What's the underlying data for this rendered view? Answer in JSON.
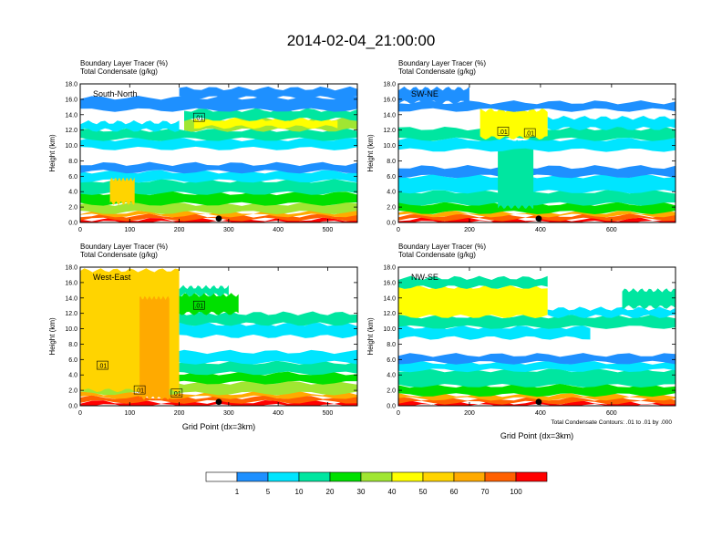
{
  "title": "2014-02-04_21:00:00",
  "colors": {
    "levels": [
      "#ffffff",
      "#1e90ff",
      "#00e5ff",
      "#00e6a0",
      "#00e000",
      "#a0e632",
      "#ffff00",
      "#ffd400",
      "#ffaa00",
      "#ff6000",
      "#ff0000"
    ]
  },
  "chart_data": [
    {
      "type": "contour",
      "panel_label": "South-North",
      "header_line1": "Boundary Layer Tracer   (%)",
      "header_line2": "Total Condensate   (g/kg)",
      "ylabel": "Height (km)",
      "xlabel": "",
      "x_ticks": [
        "0",
        "100",
        "200",
        "300",
        "400",
        "500"
      ],
      "x_tick_values": [
        0,
        100,
        200,
        300,
        400,
        500
      ],
      "xlim": [
        0,
        560
      ],
      "y_ticks": [
        "0.0",
        "2.0",
        "4.0",
        "6.0",
        "8.0",
        "10.0",
        "12.0",
        "14.0",
        "16.0",
        "18.0"
      ],
      "ylim": [
        0,
        18
      ],
      "marker_x": 280,
      "contour_labels": [
        {
          "text": ".01",
          "x": 240,
          "y": 13.6
        }
      ],
      "bands": [
        {
          "x0": 0,
          "x1": 560,
          "y0": 0,
          "y1": 0.4,
          "level": 10
        },
        {
          "x0": 0,
          "x1": 560,
          "y0": 0.4,
          "y1": 0.9,
          "level": 9
        },
        {
          "x0": 0,
          "x1": 560,
          "y0": 0.9,
          "y1": 1.3,
          "level": 8
        },
        {
          "x0": 0,
          "x1": 560,
          "y0": 1.3,
          "y1": 2.4,
          "level": 5
        },
        {
          "x0": 0,
          "x1": 560,
          "y0": 2.4,
          "y1": 3.8,
          "level": 4
        },
        {
          "x0": 0,
          "x1": 560,
          "y0": 3.8,
          "y1": 5.4,
          "level": 3
        },
        {
          "x0": 0,
          "x1": 560,
          "y0": 5.4,
          "y1": 6.6,
          "level": 2
        },
        {
          "x0": 0,
          "x1": 560,
          "y0": 6.6,
          "y1": 7.6,
          "level": 1
        },
        {
          "x0": 60,
          "x1": 110,
          "y0": 2.5,
          "y1": 5.6,
          "level": 7
        },
        {
          "x0": 0,
          "x1": 560,
          "y0": 9.6,
          "y1": 10.8,
          "level": 2
        },
        {
          "x0": 0,
          "x1": 560,
          "y0": 10.8,
          "y1": 12.0,
          "level": 3
        },
        {
          "x0": 210,
          "x1": 560,
          "y0": 12.0,
          "y1": 13.4,
          "level": 5
        },
        {
          "x0": 230,
          "x1": 520,
          "y0": 12.4,
          "y1": 13.4,
          "level": 6
        },
        {
          "x0": 210,
          "x1": 560,
          "y0": 13.4,
          "y1": 14.6,
          "level": 3
        },
        {
          "x0": 0,
          "x1": 200,
          "y0": 12.0,
          "y1": 13.0,
          "level": 2
        },
        {
          "x0": 0,
          "x1": 560,
          "y0": 14.6,
          "y1": 16.2,
          "level": 1
        },
        {
          "x0": 200,
          "x1": 560,
          "y0": 16.2,
          "y1": 17.4,
          "level": 1
        }
      ]
    },
    {
      "type": "contour",
      "panel_label": "SW-NE",
      "header_line1": "Boundary Layer Tracer   (%)",
      "header_line2": "Total Condensate   (g/kg)",
      "ylabel": "Height (km)",
      "xlabel": "",
      "x_ticks": [
        "0",
        "200",
        "400",
        "600"
      ],
      "x_tick_values": [
        0,
        200,
        400,
        600
      ],
      "xlim": [
        0,
        780
      ],
      "y_ticks": [
        "0.0",
        "2.0",
        "4.0",
        "6.0",
        "8.0",
        "10.0",
        "12.0",
        "14.0",
        "16.0",
        "18.0"
      ],
      "ylim": [
        0,
        18
      ],
      "marker_x": 395,
      "contour_labels": [
        {
          "text": ".01",
          "x": 295,
          "y": 11.8
        },
        {
          "text": ".01",
          "x": 370,
          "y": 11.6
        }
      ],
      "bands": [
        {
          "x0": 0,
          "x1": 780,
          "y0": 0,
          "y1": 0.4,
          "level": 10
        },
        {
          "x0": 0,
          "x1": 780,
          "y0": 0.4,
          "y1": 0.9,
          "level": 9
        },
        {
          "x0": 0,
          "x1": 780,
          "y0": 0.9,
          "y1": 1.3,
          "level": 8
        },
        {
          "x0": 0,
          "x1": 780,
          "y0": 1.3,
          "y1": 2.4,
          "level": 4
        },
        {
          "x0": 0,
          "x1": 780,
          "y0": 2.4,
          "y1": 4.0,
          "level": 3
        },
        {
          "x0": 0,
          "x1": 780,
          "y0": 4.0,
          "y1": 6.0,
          "level": 2
        },
        {
          "x0": 0,
          "x1": 780,
          "y0": 6.0,
          "y1": 7.2,
          "level": 1
        },
        {
          "x0": 280,
          "x1": 380,
          "y0": 2.0,
          "y1": 10.5,
          "level": 3
        },
        {
          "x0": 0,
          "x1": 780,
          "y0": 9.4,
          "y1": 10.8,
          "level": 2
        },
        {
          "x0": 0,
          "x1": 780,
          "y0": 10.8,
          "y1": 12.2,
          "level": 3
        },
        {
          "x0": 230,
          "x1": 420,
          "y0": 11.0,
          "y1": 14.6,
          "level": 6
        },
        {
          "x0": 420,
          "x1": 780,
          "y0": 12.2,
          "y1": 13.6,
          "level": 2
        },
        {
          "x0": 0,
          "x1": 780,
          "y0": 14.6,
          "y1": 15.6,
          "level": 1
        },
        {
          "x0": 0,
          "x1": 200,
          "y0": 15.6,
          "y1": 17.4,
          "level": 1
        }
      ]
    },
    {
      "type": "contour",
      "panel_label": "West-East",
      "header_line1": "Boundary Layer Tracer   (%)",
      "header_line2": "Total Condensate   (g/kg)",
      "ylabel": "Height (km)",
      "xlabel": "Grid Point (dx=3km)",
      "x_ticks": [
        "0",
        "100",
        "200",
        "300",
        "400",
        "500"
      ],
      "x_tick_values": [
        0,
        100,
        200,
        300,
        400,
        500
      ],
      "xlim": [
        0,
        560
      ],
      "y_ticks": [
        "0.0",
        "2.0",
        "4.0",
        "6.0",
        "8.0",
        "10.0",
        "12.0",
        "14.0",
        "16.0",
        "18.0"
      ],
      "ylim": [
        0,
        18
      ],
      "marker_x": 280,
      "contour_labels": [
        {
          "text": ".01",
          "x": 45,
          "y": 5.2
        },
        {
          "text": ".01",
          "x": 120,
          "y": 2.0
        },
        {
          "text": ".01",
          "x": 195,
          "y": 1.6
        },
        {
          "text": ".01",
          "x": 240,
          "y": 13.0
        }
      ],
      "bands": [
        {
          "x0": 0,
          "x1": 560,
          "y0": 0,
          "y1": 0.5,
          "level": 10
        },
        {
          "x0": 0,
          "x1": 560,
          "y0": 0.5,
          "y1": 1.1,
          "level": 9
        },
        {
          "x0": 0,
          "x1": 560,
          "y0": 1.1,
          "y1": 1.6,
          "level": 8
        },
        {
          "x0": 0,
          "x1": 560,
          "y0": 1.6,
          "y1": 3.0,
          "level": 5
        },
        {
          "x0": 0,
          "x1": 560,
          "y0": 3.0,
          "y1": 4.2,
          "level": 4
        },
        {
          "x0": 0,
          "x1": 560,
          "y0": 4.2,
          "y1": 5.6,
          "level": 3
        },
        {
          "x0": 0,
          "x1": 560,
          "y0": 5.6,
          "y1": 7.0,
          "level": 2
        },
        {
          "x0": 0,
          "x1": 200,
          "y0": 2.0,
          "y1": 17.6,
          "level": 7
        },
        {
          "x0": 120,
          "x1": 180,
          "y0": 1.0,
          "y1": 14.0,
          "level": 8
        },
        {
          "x0": 200,
          "x1": 560,
          "y0": 9.0,
          "y1": 10.6,
          "level": 2
        },
        {
          "x0": 200,
          "x1": 560,
          "y0": 10.6,
          "y1": 12.0,
          "level": 3
        },
        {
          "x0": 200,
          "x1": 320,
          "y0": 12.0,
          "y1": 14.4,
          "level": 4
        },
        {
          "x0": 200,
          "x1": 300,
          "y0": 14.4,
          "y1": 15.4,
          "level": 3
        }
      ]
    },
    {
      "type": "contour",
      "panel_label": "NW-SE",
      "header_line1": "Boundary Layer Tracer   (%)",
      "header_line2": "Total Condensate   (g/kg)",
      "ylabel": "Height (km)",
      "xlabel": "Grid Point (dx=3km)",
      "x_ticks": [
        "0",
        "200",
        "400",
        "600"
      ],
      "x_tick_values": [
        0,
        200,
        400,
        600
      ],
      "xlim": [
        0,
        780
      ],
      "y_ticks": [
        "0.0",
        "2.0",
        "4.0",
        "6.0",
        "8.0",
        "10.0",
        "12.0",
        "14.0",
        "16.0",
        "18.0"
      ],
      "ylim": [
        0,
        18
      ],
      "marker_x": 395,
      "note": "Total Condensate Contours: .01 to .01 by .000",
      "contour_labels": [],
      "bands": [
        {
          "x0": 0,
          "x1": 780,
          "y0": 0,
          "y1": 0.4,
          "level": 10
        },
        {
          "x0": 0,
          "x1": 780,
          "y0": 0.4,
          "y1": 0.9,
          "level": 9
        },
        {
          "x0": 0,
          "x1": 780,
          "y0": 0.9,
          "y1": 1.4,
          "level": 8
        },
        {
          "x0": 0,
          "x1": 780,
          "y0": 1.4,
          "y1": 2.6,
          "level": 4
        },
        {
          "x0": 0,
          "x1": 780,
          "y0": 2.6,
          "y1": 4.6,
          "level": 3
        },
        {
          "x0": 0,
          "x1": 780,
          "y0": 4.6,
          "y1": 5.6,
          "level": 2
        },
        {
          "x0": 0,
          "x1": 780,
          "y0": 5.6,
          "y1": 6.6,
          "level": 1
        },
        {
          "x0": 0,
          "x1": 540,
          "y0": 8.8,
          "y1": 10.2,
          "level": 2
        },
        {
          "x0": 0,
          "x1": 780,
          "y0": 10.2,
          "y1": 11.6,
          "level": 3
        },
        {
          "x0": 0,
          "x1": 420,
          "y0": 11.6,
          "y1": 15.4,
          "level": 6
        },
        {
          "x0": 420,
          "x1": 780,
          "y0": 11.6,
          "y1": 12.6,
          "level": 2
        },
        {
          "x0": 0,
          "x1": 420,
          "y0": 15.4,
          "y1": 16.6,
          "level": 3
        },
        {
          "x0": 630,
          "x1": 780,
          "y0": 12.8,
          "y1": 15.0,
          "level": 3
        }
      ]
    }
  ],
  "legend": {
    "labels": [
      "1",
      "5",
      "10",
      "20",
      "30",
      "40",
      "50",
      "60",
      "70",
      "100"
    ]
  }
}
